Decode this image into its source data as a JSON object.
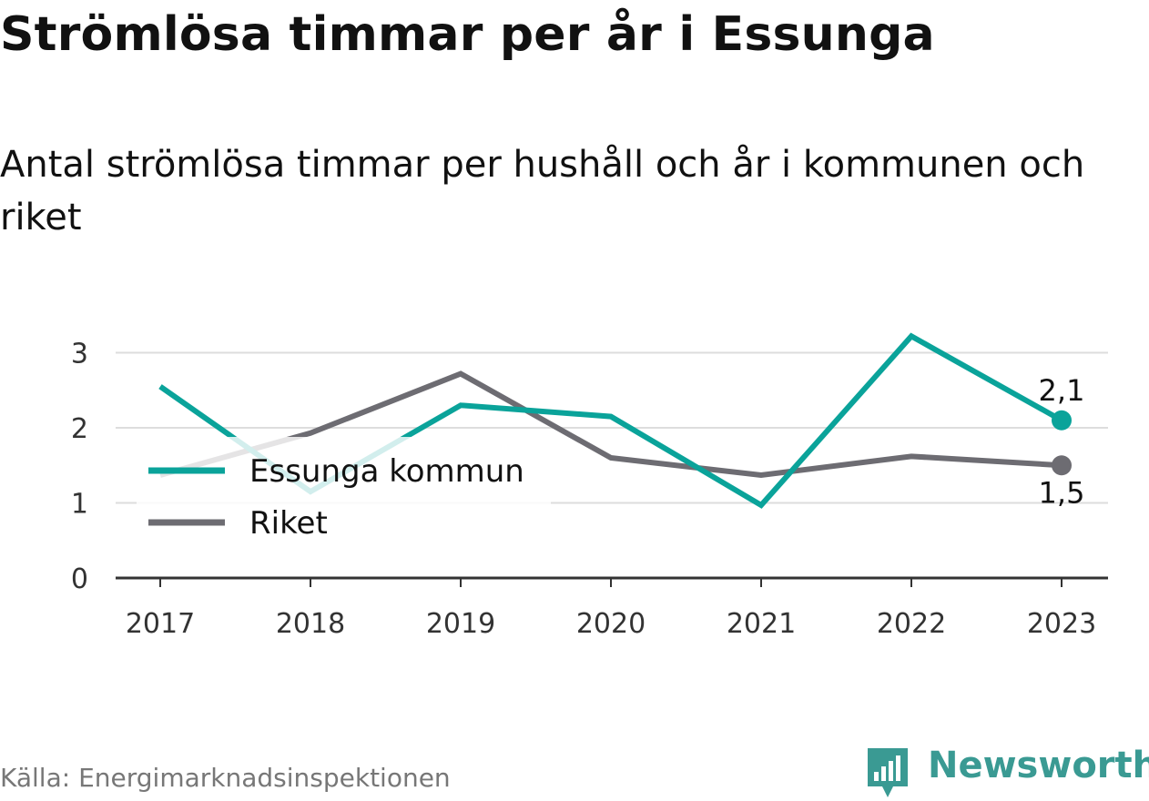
{
  "title": "Strömlösa timmar per år i Essunga",
  "subtitle": "Antal strömlösa timmar per hushåll och år i kommunen och riket",
  "source": "Källa: Energimarknadsinspektionen",
  "brand": {
    "name": "Newsworthy",
    "icon": "newsworthy-logo-icon",
    "color": "#3a9a93"
  },
  "chart_data": {
    "type": "line",
    "x": [
      "2017",
      "2018",
      "2019",
      "2020",
      "2021",
      "2022",
      "2023"
    ],
    "ylim": [
      0,
      3.3
    ],
    "yticks": [
      "0",
      "1",
      "2",
      "3"
    ],
    "grid": true,
    "legend_position": "left",
    "series": [
      {
        "name": "Essunga kommun",
        "color": "#0aa39a",
        "values": [
          2.55,
          1.15,
          2.3,
          2.15,
          0.97,
          3.22,
          2.1
        ],
        "end_label": "2,1"
      },
      {
        "name": "Riket",
        "color": "#6d6c72",
        "values": [
          1.37,
          1.93,
          2.72,
          1.6,
          1.37,
          1.62,
          1.5
        ],
        "end_label": "1,5"
      }
    ]
  }
}
